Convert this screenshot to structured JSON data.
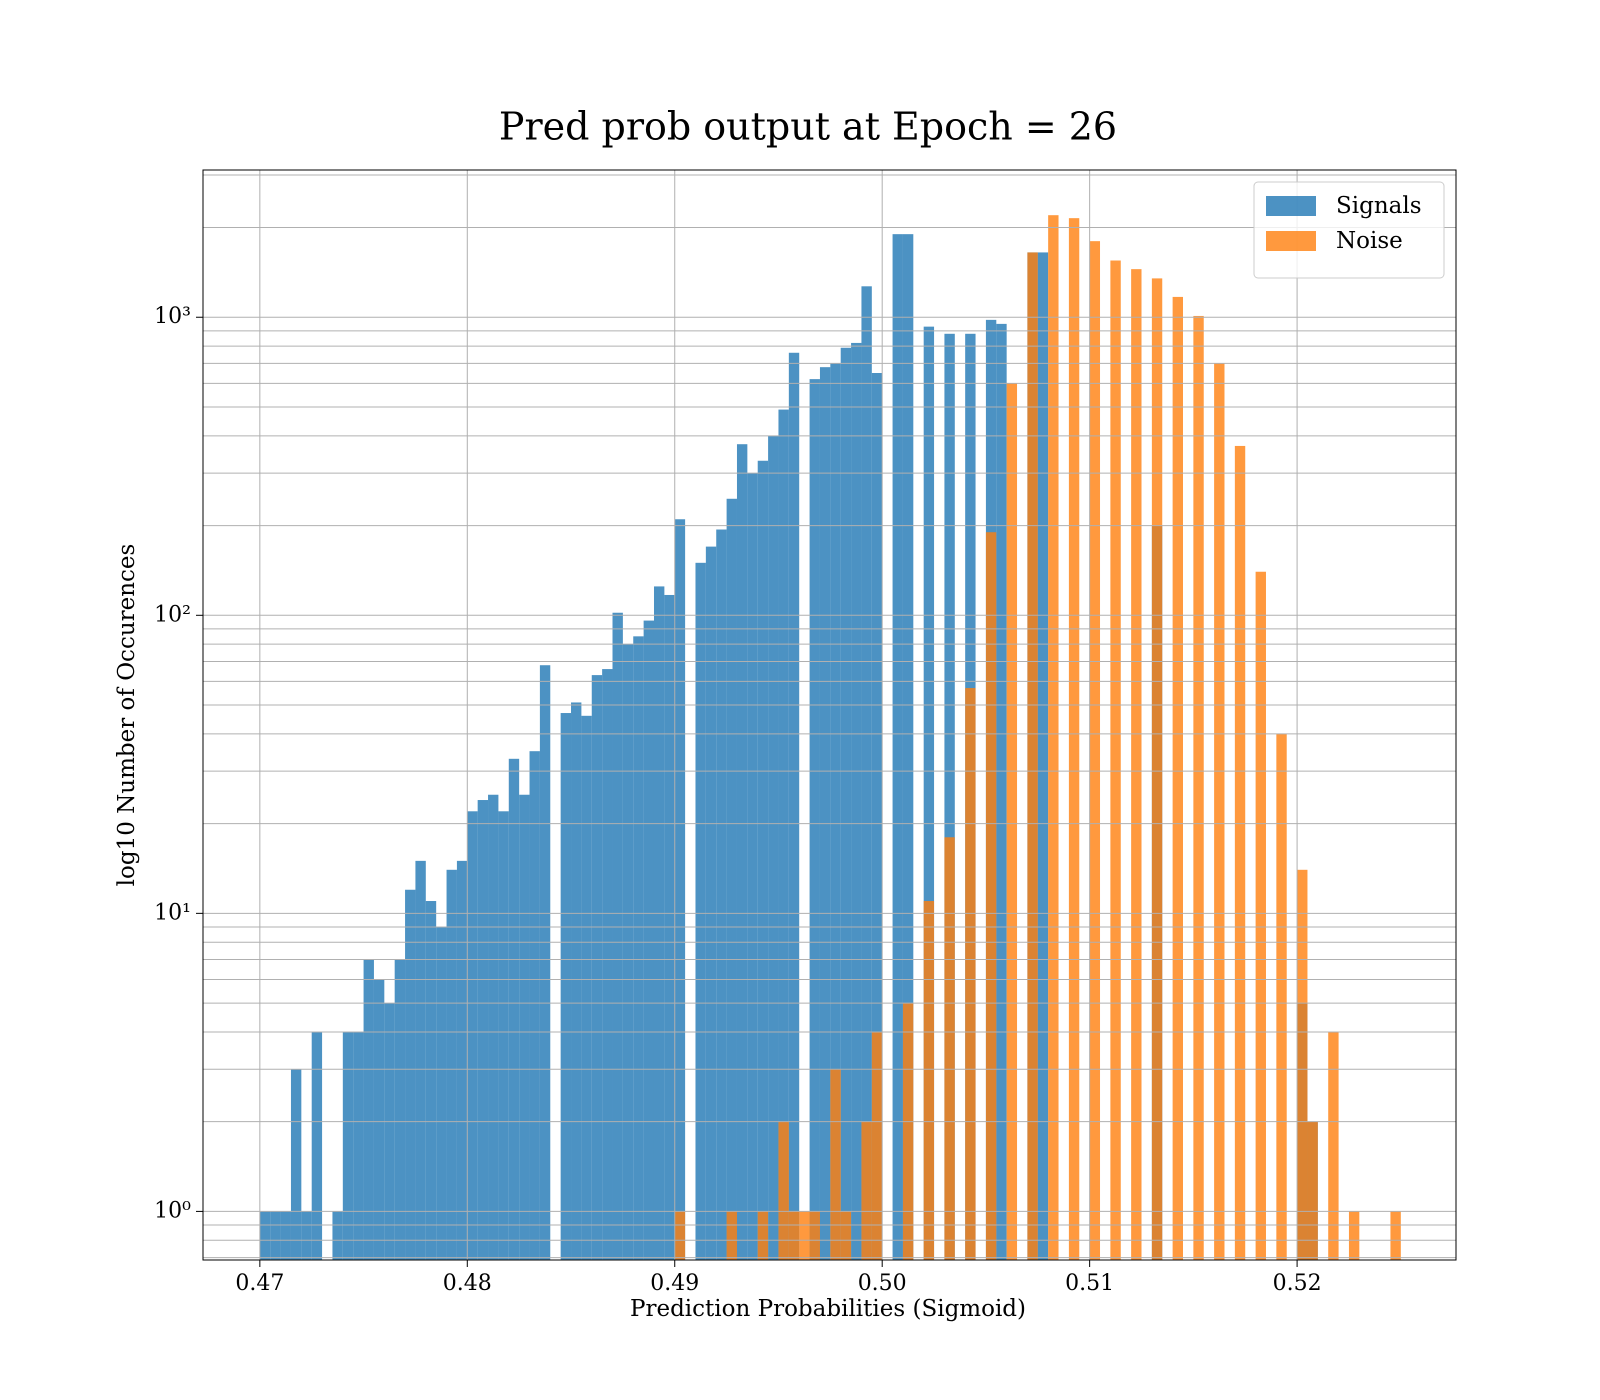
{
  "chart_data": {
    "type": "histogram",
    "title": "Pred prob output at Epoch = 26",
    "xlabel": "Prediction Probabilities (Sigmoid)",
    "ylabel": "log10 Number of Occurences",
    "xlim": [
      0.46726,
      0.52766
    ],
    "ylim": [
      0.687,
      3119
    ],
    "log_y": true,
    "grid": true,
    "legend": "upper right",
    "xticks": [
      0.47,
      0.48,
      0.49,
      {
        "value": 0.5,
        "label": "0.50"
      },
      0.51,
      0.52
    ],
    "yticks": [
      {
        "value": 1,
        "label": "10⁰"
      },
      {
        "value": 10,
        "label": "10¹"
      },
      {
        "value": 100,
        "label": "10²"
      },
      {
        "value": 1000,
        "label": "10³"
      }
    ],
    "yticks_minor": [
      0.7,
      0.8,
      0.9,
      2,
      3,
      4,
      5,
      6,
      7,
      8,
      9,
      20,
      30,
      40,
      50,
      60,
      70,
      80,
      90,
      200,
      300,
      400,
      500,
      600,
      700,
      800,
      900,
      2000,
      3000
    ],
    "series": [
      {
        "name": "Signals",
        "color": "#1f77b4",
        "bins": [
          0.47,
          0.4705,
          0.471,
          0.4715,
          0.472,
          0.4725,
          0.473,
          0.4735,
          0.474,
          0.4745,
          0.475,
          0.4755,
          0.476,
          0.4765,
          0.477,
          0.4775,
          0.478,
          0.4785,
          0.479,
          0.4795,
          0.48,
          0.4805,
          0.481,
          0.4815,
          0.482,
          0.4825,
          0.483,
          0.4835,
          0.484,
          0.4845,
          0.485,
          0.4855,
          0.486,
          0.4865,
          0.487,
          0.4875,
          0.488,
          0.4885,
          0.489,
          0.4895,
          0.49,
          0.4905,
          0.491,
          0.4915,
          0.492,
          0.4925,
          0.493,
          0.4935,
          0.494,
          0.4945,
          0.495,
          0.4955,
          0.496,
          0.4965,
          0.497,
          0.4975,
          0.498,
          0.4985,
          0.499,
          0.4995,
          0.5,
          0.5005,
          0.501,
          0.5015,
          0.502,
          0.5025,
          0.503,
          0.5035,
          0.504,
          0.5045,
          0.505,
          0.5055,
          0.506,
          0.5065,
          0.507,
          0.5075,
          0.508,
          0.5085,
          0.509,
          0.5095,
          0.51,
          0.5105,
          0.511,
          0.5115,
          0.512,
          0.5125,
          0.513,
          0.5135,
          0.514,
          0.5145,
          0.515,
          0.5155,
          0.516,
          0.5165,
          0.517,
          0.5175,
          0.518,
          0.5185,
          0.519,
          0.5195,
          0.52,
          0.5205,
          0.521
        ],
        "values": [
          1,
          1,
          1,
          3,
          1,
          4,
          0,
          1,
          4,
          4,
          7,
          6,
          5,
          7,
          12,
          15,
          11,
          9,
          14,
          15,
          22,
          24,
          25,
          22,
          33,
          25,
          35,
          68,
          0,
          47,
          51,
          46,
          63,
          66,
          102,
          80,
          85,
          96,
          125,
          117,
          210,
          0,
          150,
          170,
          194,
          246,
          375,
          300,
          330,
          400,
          490,
          760,
          0,
          620,
          680,
          700,
          790,
          820,
          1270,
          650,
          0,
          1900,
          1900,
          0,
          930,
          0,
          880,
          0,
          880,
          0,
          980,
          950,
          0,
          0,
          1650,
          1650,
          0,
          0,
          0,
          0,
          0,
          0,
          0,
          0,
          0,
          0,
          200,
          0,
          0,
          0,
          0,
          0,
          0,
          0,
          0,
          0,
          0,
          0,
          0,
          0,
          5,
          2
        ]
      },
      {
        "name": "Noise",
        "color": "#ff7f0e",
        "bins": [
          0.49,
          0.4905,
          0.491,
          0.4915,
          0.492,
          0.4925,
          0.493,
          0.4935,
          0.494,
          0.4945,
          0.495,
          0.4955,
          0.496,
          0.4965,
          0.497,
          0.4975,
          0.498,
          0.4985,
          0.499,
          0.4995,
          0.5,
          0.5005,
          0.501,
          0.5015,
          0.502,
          0.5025,
          0.503,
          0.5035,
          0.504,
          0.5045,
          0.505,
          0.5055,
          0.506,
          0.5065,
          0.507,
          0.5075,
          0.508,
          0.5085,
          0.509,
          0.5095,
          0.51,
          0.5105,
          0.511,
          0.5115,
          0.512,
          0.5125,
          0.513,
          0.5135,
          0.514,
          0.5145,
          0.515,
          0.5155,
          0.516,
          0.5165,
          0.517,
          0.5175,
          0.518,
          0.5185,
          0.519,
          0.5195,
          0.52,
          0.5205,
          0.521,
          0.5215,
          0.522,
          0.5225,
          0.523,
          0.5235,
          0.524,
          0.5245,
          0.525
        ],
        "values": [
          1,
          0,
          0,
          0,
          0,
          1,
          0,
          0,
          1,
          0,
          2,
          1,
          1,
          1,
          0,
          3,
          1,
          0,
          2,
          4,
          0,
          0,
          5,
          0,
          11,
          0,
          18,
          0,
          57,
          0,
          190,
          0,
          600,
          0,
          1650,
          0,
          2200,
          0,
          2150,
          0,
          1800,
          0,
          1550,
          0,
          1450,
          0,
          1350,
          0,
          1170,
          0,
          1010,
          0,
          700,
          0,
          370,
          0,
          140,
          0,
          40,
          0,
          14,
          2,
          0,
          4,
          0,
          1,
          0,
          0,
          0,
          1
        ]
      }
    ]
  }
}
